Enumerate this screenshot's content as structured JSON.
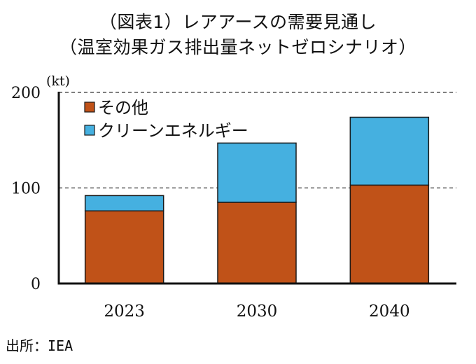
{
  "chart_data": {
    "type": "bar",
    "stacked": true,
    "title": "（図表1）レアアースの需要見通し",
    "subtitle": "（温室効果ガス排出量ネットゼロシナリオ）",
    "unit_label": "(kt)",
    "xlabel": "",
    "ylabel": "(kt)",
    "categories": [
      "2023",
      "2030",
      "2040"
    ],
    "series": [
      {
        "name": "その他",
        "color": "#c05218",
        "values": [
          76,
          85,
          103
        ]
      },
      {
        "name": "クリーンエネルギー",
        "color": "#45b0e0",
        "values": [
          16,
          62,
          71
        ]
      }
    ],
    "ylim": [
      0,
      200
    ],
    "yticks": [
      0,
      100,
      200
    ],
    "ytick_labels": [
      "0",
      "100",
      "200"
    ],
    "grid": "dashed-horizontal",
    "legend_position": "top-left",
    "source": "出所：IEA"
  }
}
